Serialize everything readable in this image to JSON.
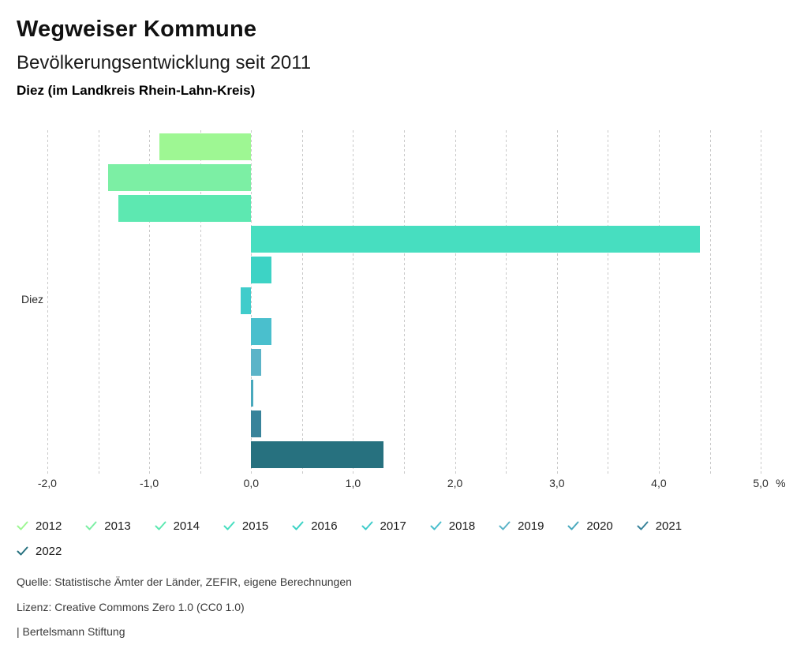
{
  "header": {
    "title": "Wegweiser Kommune",
    "subtitle": "Bevölkerungsentwicklung seit 2011",
    "region_line": "Diez (im Landkreis Rhein-Lahn-Kreis)"
  },
  "chart_data": {
    "type": "bar",
    "orientation": "horizontal",
    "category_label": "Diez",
    "title": "Bevölkerungsentwicklung seit 2011",
    "unit": "%",
    "grid": {
      "on": true,
      "from": -2.0,
      "to": 5.0,
      "step": 0.5,
      "color": "#c9c9c9"
    },
    "x_axis": {
      "min": -2.1,
      "max": 5.34,
      "tick_values": [
        -2,
        -1,
        0,
        1,
        2,
        3,
        4,
        5
      ],
      "tick_labels": [
        "-2,0",
        "-1,0",
        "0,0",
        "1,0",
        "2,0",
        "3,0",
        "4,0",
        "5,0"
      ],
      "unit_label": "%"
    },
    "series": [
      {
        "name": "2012",
        "value": -0.9,
        "color": "#9ef793"
      },
      {
        "name": "2013",
        "value": -1.4,
        "color": "#7cefa4"
      },
      {
        "name": "2014",
        "value": -1.3,
        "color": "#5de8b1"
      },
      {
        "name": "2015",
        "value": 4.4,
        "color": "#47dec0"
      },
      {
        "name": "2016",
        "value": 0.2,
        "color": "#3dd3c5"
      },
      {
        "name": "2017",
        "value": -0.1,
        "color": "#40cccb"
      },
      {
        "name": "2018",
        "value": 0.2,
        "color": "#4abfcd"
      },
      {
        "name": "2019",
        "value": 0.1,
        "color": "#5cb4c8"
      },
      {
        "name": "2020",
        "value": 0.02,
        "color": "#49a9bd"
      },
      {
        "name": "2021",
        "value": 0.1,
        "color": "#38839a"
      },
      {
        "name": "2022",
        "value": 1.3,
        "color": "#27717f"
      }
    ],
    "legend_position": "bottom",
    "legend_check_icon": "checkmark"
  },
  "footer": {
    "source": "Quelle: Statistische Ämter der Länder, ZEFIR, eigene Berechnungen",
    "license": "Lizenz: Creative Commons Zero 1.0 (CC0 1.0)",
    "attribution": "| Bertelsmann Stiftung"
  }
}
